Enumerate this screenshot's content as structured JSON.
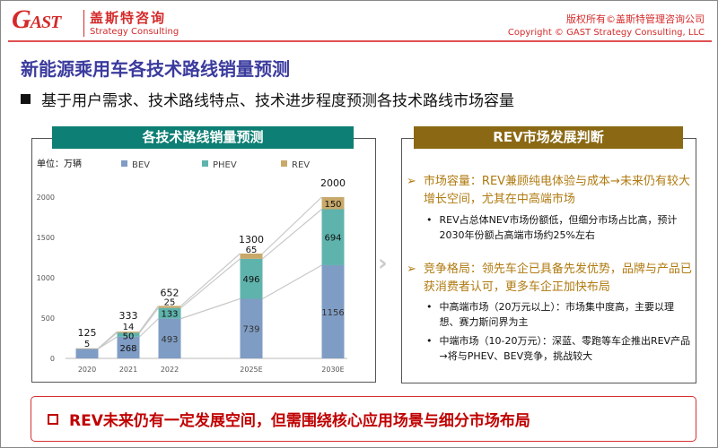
{
  "header": {
    "logo_text": "GAST",
    "brand_cn": "盖斯特咨询",
    "brand_en": "Strategy Consulting",
    "copyright_cn": "版权所有©盖斯特管理咨询公司",
    "copyright_en": "Copyright © GAST Strategy Consulting, LLC"
  },
  "title": "新能源乘用车各技术路线销量预测",
  "subtitle": "基于用户需求、技术路线特点、技术进步程度预测各技术路线市场容量",
  "watermark": "GAST 盖斯特咨询",
  "chart_panel": {
    "title": "各技术路线销量预测",
    "unit": "单位：万辆"
  },
  "chart_data": {
    "type": "bar",
    "stacked": true,
    "title": "各技术路线销量预测",
    "ylabel": "单位：万辆",
    "ylim": [
      0,
      2000
    ],
    "yticks": [
      "0",
      "500",
      "1000",
      "1500",
      "2000"
    ],
    "categories": [
      "2020",
      "2021",
      "2022",
      "2025E",
      "2030E"
    ],
    "series": [
      {
        "name": "BEV",
        "color": "#7f9cc4",
        "values": [
          120,
          268,
          493,
          739,
          1156
        ],
        "labels": [
          "",
          "268",
          "493",
          "739",
          "1156"
        ]
      },
      {
        "name": "PHEV",
        "color": "#5fb3ad",
        "values": [
          0,
          50,
          133,
          496,
          694
        ],
        "labels": [
          "",
          "50",
          "133",
          "496",
          "694"
        ]
      },
      {
        "name": "REV",
        "color": "#c8a96a",
        "values": [
          5,
          14,
          25,
          65,
          150
        ],
        "labels": [
          "5",
          "14",
          "25",
          "65",
          "150"
        ]
      }
    ],
    "totals": [
      "125",
      "333",
      "652",
      "1300",
      "2000"
    ]
  },
  "rev_panel": {
    "title": "REV市场发展判断",
    "sections": [
      {
        "heading": "市场容量：REV兼顾纯电体验与成本→未来仍有较大增长空间，尤其在中高端市场",
        "points": [
          "REV占总体NEV市场份额低，但细分市场占比高，预计2030年份额占高端市场约25%左右"
        ]
      },
      {
        "heading": "竞争格局：领先车企已具备先发优势，品牌与产品已获消费者认可，更多车企正加快布局",
        "points": [
          "中高端市场（20万元以上）：市场集中度高，主要以理想、赛力斯问界为主",
          "中端市场（10-20万元）：深蓝、零跑等车企推出REV产品→将与PHEV、BEV竞争，挑战较大"
        ]
      }
    ]
  },
  "conclusion": "REV未来仍有一定发展空间，但需围绕核心应用场景与细分市场布局"
}
